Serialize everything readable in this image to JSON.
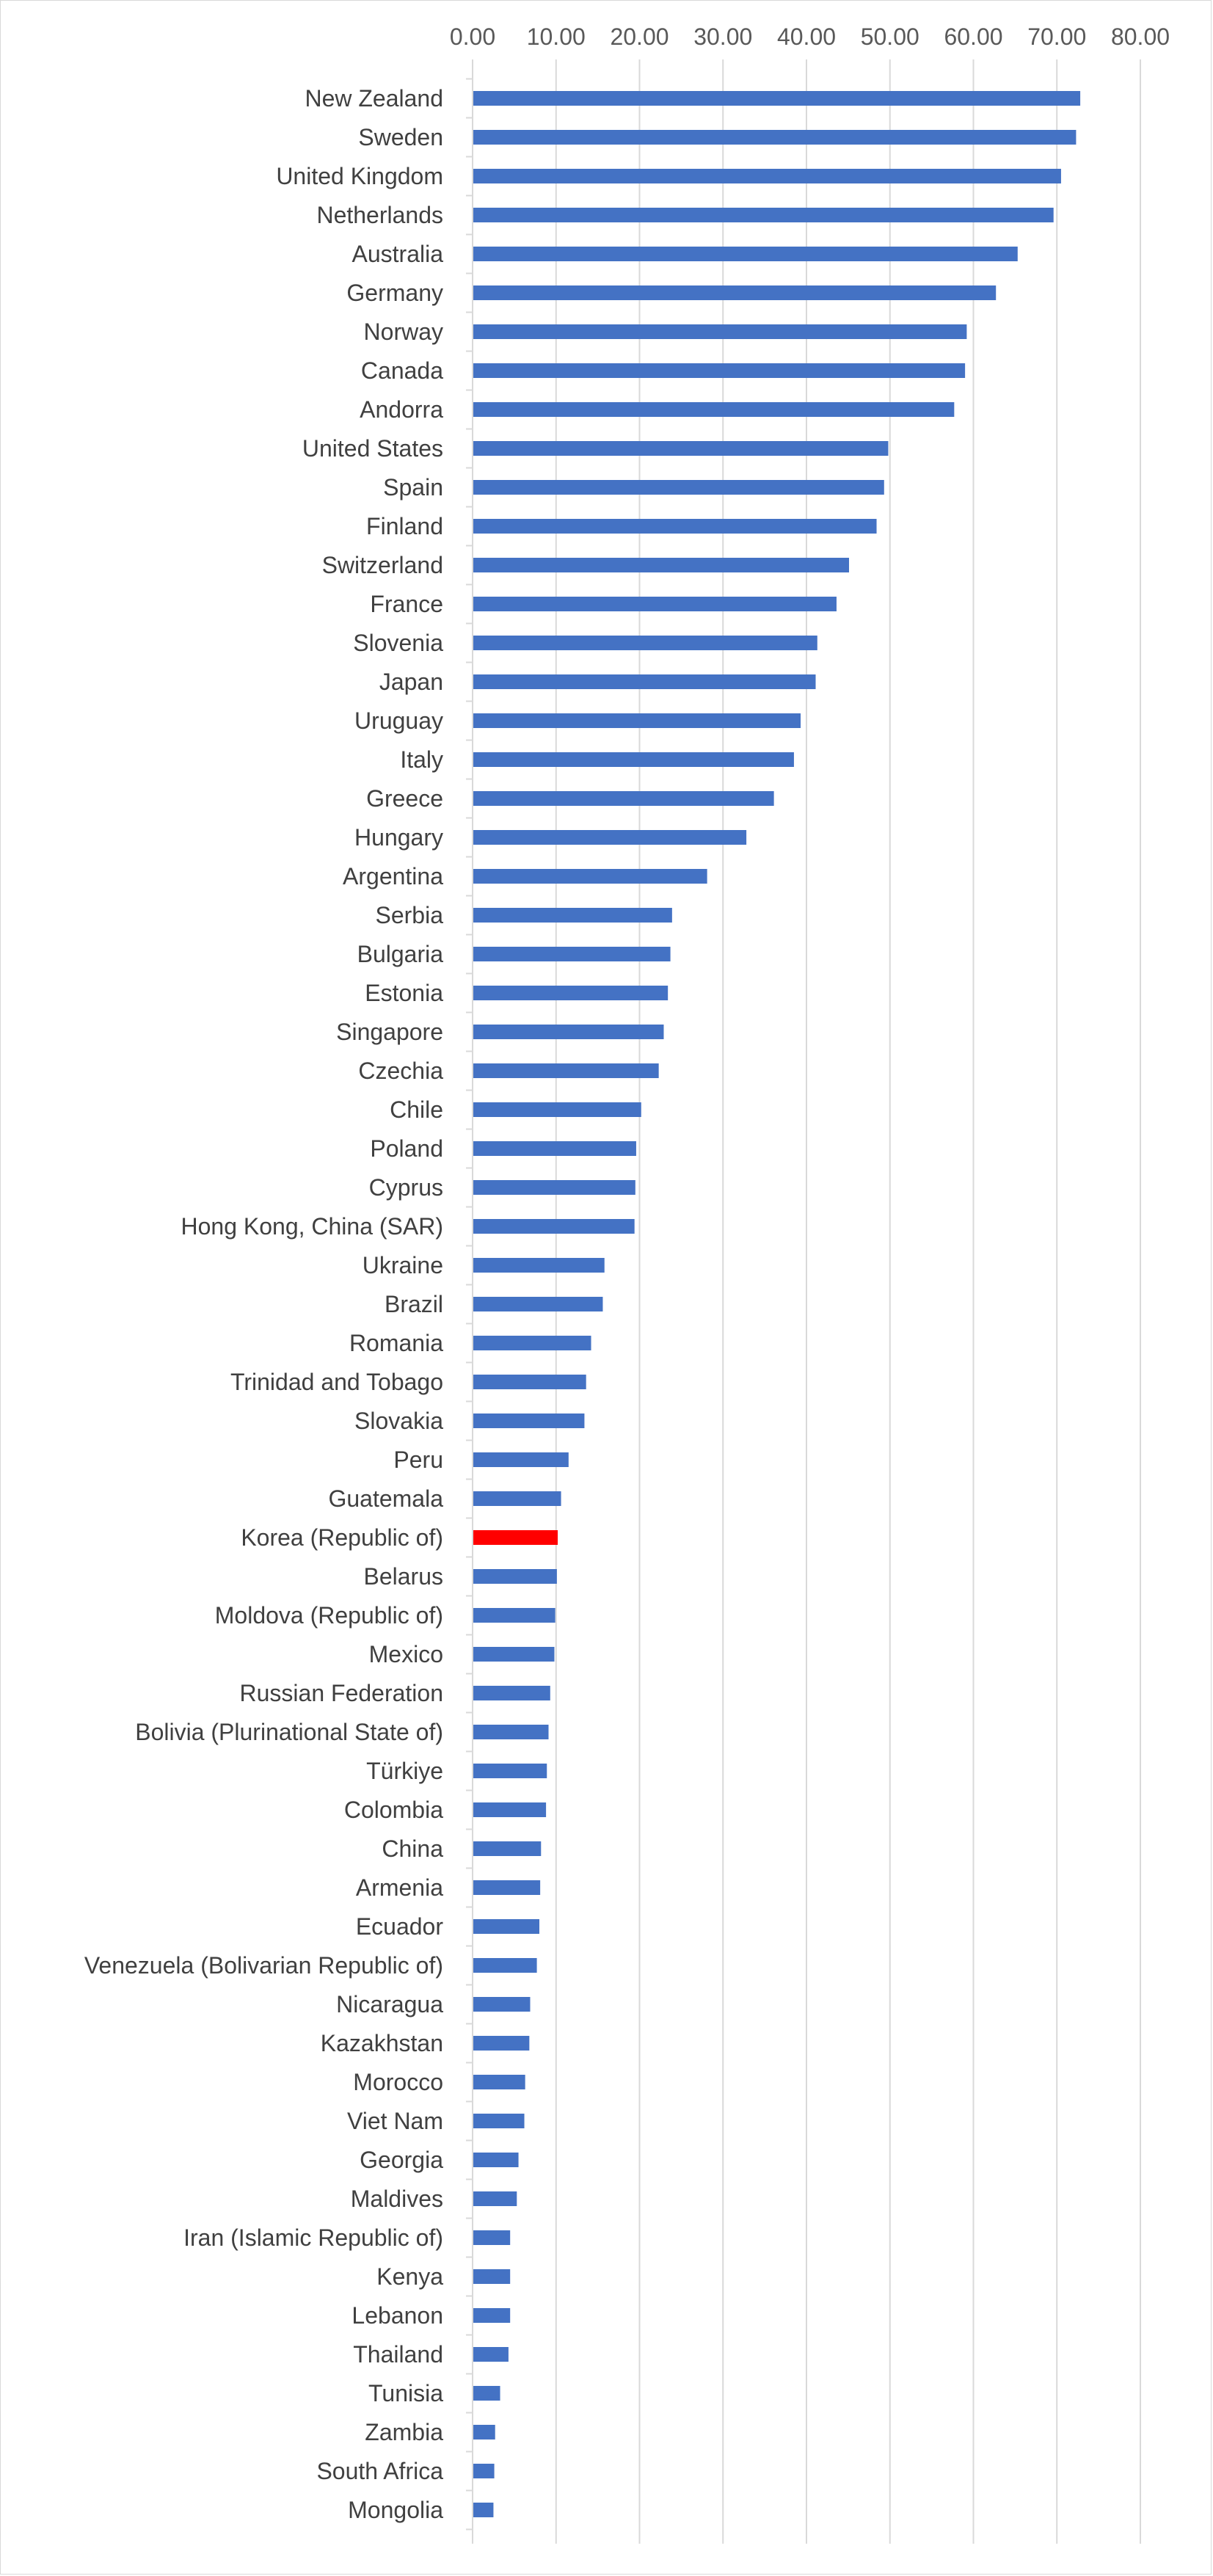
{
  "chart_data": {
    "type": "bar",
    "orientation": "horizontal",
    "title": "",
    "xlabel": "",
    "ylabel": "",
    "xlim": [
      0,
      80
    ],
    "x_ticks": [
      "0.00",
      "10.00",
      "20.00",
      "30.00",
      "40.00",
      "50.00",
      "60.00",
      "70.00",
      "80.00"
    ],
    "x_tick_values": [
      0,
      10,
      20,
      30,
      40,
      50,
      60,
      70,
      80
    ],
    "x_axis_position": "top",
    "grid": "vertical",
    "legend": "none",
    "bar_color": "#4472c4",
    "highlight_color": "#ff0000",
    "highlight_category": "Korea (Republic of)",
    "gridline_color": "#d9d9d9",
    "categories": [
      "New Zealand",
      "Sweden",
      "United Kingdom",
      "Netherlands",
      "Australia",
      "Germany",
      "Norway",
      "Canada",
      "Andorra",
      "United States",
      "Spain",
      "Finland",
      "Switzerland",
      "France",
      "Slovenia",
      "Japan",
      "Uruguay",
      "Italy",
      "Greece",
      "Hungary",
      "Argentina",
      "Serbia",
      "Bulgaria",
      "Estonia",
      "Singapore",
      "Czechia",
      "Chile",
      "Poland",
      "Cyprus",
      "Hong Kong, China (SAR)",
      "Ukraine",
      "Brazil",
      "Romania",
      "Trinidad and Tobago",
      "Slovakia",
      "Peru",
      "Guatemala",
      "Korea (Republic of)",
      "Belarus",
      "Moldova (Republic of)",
      "Mexico",
      "Russian Federation",
      "Bolivia (Plurinational State of)",
      "Türkiye",
      "Colombia",
      "China",
      "Armenia",
      "Ecuador",
      "Venezuela (Bolivarian Republic of)",
      "Nicaragua",
      "Kazakhstan",
      "Morocco",
      "Viet Nam",
      "Georgia",
      "Maldives",
      "Iran (Islamic Republic of)",
      "Kenya",
      "Lebanon",
      "Thailand",
      "Tunisia",
      "Zambia",
      "South Africa",
      "Mongolia"
    ],
    "values": [
      72.8,
      72.3,
      70.5,
      69.6,
      65.3,
      62.7,
      59.2,
      59.0,
      57.7,
      49.8,
      49.3,
      48.4,
      45.1,
      43.6,
      41.3,
      41.1,
      39.3,
      38.5,
      36.1,
      32.8,
      28.1,
      23.9,
      23.7,
      23.4,
      22.9,
      22.3,
      20.2,
      19.6,
      19.5,
      19.4,
      15.8,
      15.6,
      14.2,
      13.6,
      13.4,
      11.5,
      10.6,
      10.2,
      10.1,
      9.9,
      9.8,
      9.3,
      9.1,
      8.9,
      8.8,
      8.2,
      8.1,
      8.0,
      7.7,
      6.9,
      6.8,
      6.3,
      6.2,
      5.5,
      5.3,
      4.5,
      4.5,
      4.5,
      4.3,
      3.3,
      2.7,
      2.6,
      2.5
    ]
  }
}
